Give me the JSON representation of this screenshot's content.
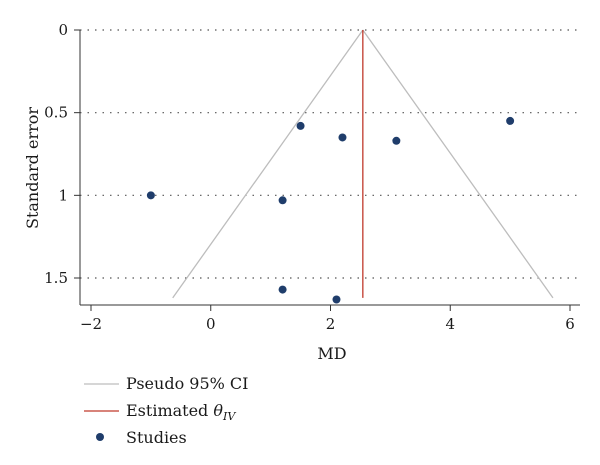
{
  "chart_data": {
    "type": "scatter",
    "subtype": "funnel-plot",
    "xlabel": "MD",
    "ylabel": "Standard error",
    "xlim": [
      -2.25,
      6.2
    ],
    "ylim": [
      0,
      1.65
    ],
    "y_reversed": true,
    "x_ticks": [
      -2,
      0,
      2,
      4,
      6
    ],
    "x_tick_labels": [
      "−2",
      "0",
      "2",
      "4",
      "6"
    ],
    "y_ticks": [
      0,
      0.5,
      1,
      1.5
    ],
    "y_tick_labels": [
      "0",
      "0.5",
      "1",
      "1.5"
    ],
    "grid": "horizontal dotted",
    "estimate": 2.54,
    "ci_se_max": 1.62,
    "studies": [
      {
        "x": 1.5,
        "y": 0.58
      },
      {
        "x": 2.2,
        "y": 0.65
      },
      {
        "x": 3.1,
        "y": 0.67
      },
      {
        "x": 5.0,
        "y": 0.55
      },
      {
        "x": -1.0,
        "y": 1.0
      },
      {
        "x": 1.2,
        "y": 1.03
      },
      {
        "x": 1.2,
        "y": 1.57
      },
      {
        "x": 2.1,
        "y": 1.63
      }
    ],
    "legend": {
      "placement": "bottom-left",
      "ci_label": "Pseudo 95% CI",
      "estimate_label_prefix": "Estimated ",
      "estimate_symbol": "θ",
      "estimate_subscript": "IV",
      "studies_label": "Studies"
    },
    "colors": {
      "ci": "#bdbdbd",
      "estimate": "#c0392b",
      "studies": "#1f3d6b",
      "grid": "#555555"
    }
  }
}
